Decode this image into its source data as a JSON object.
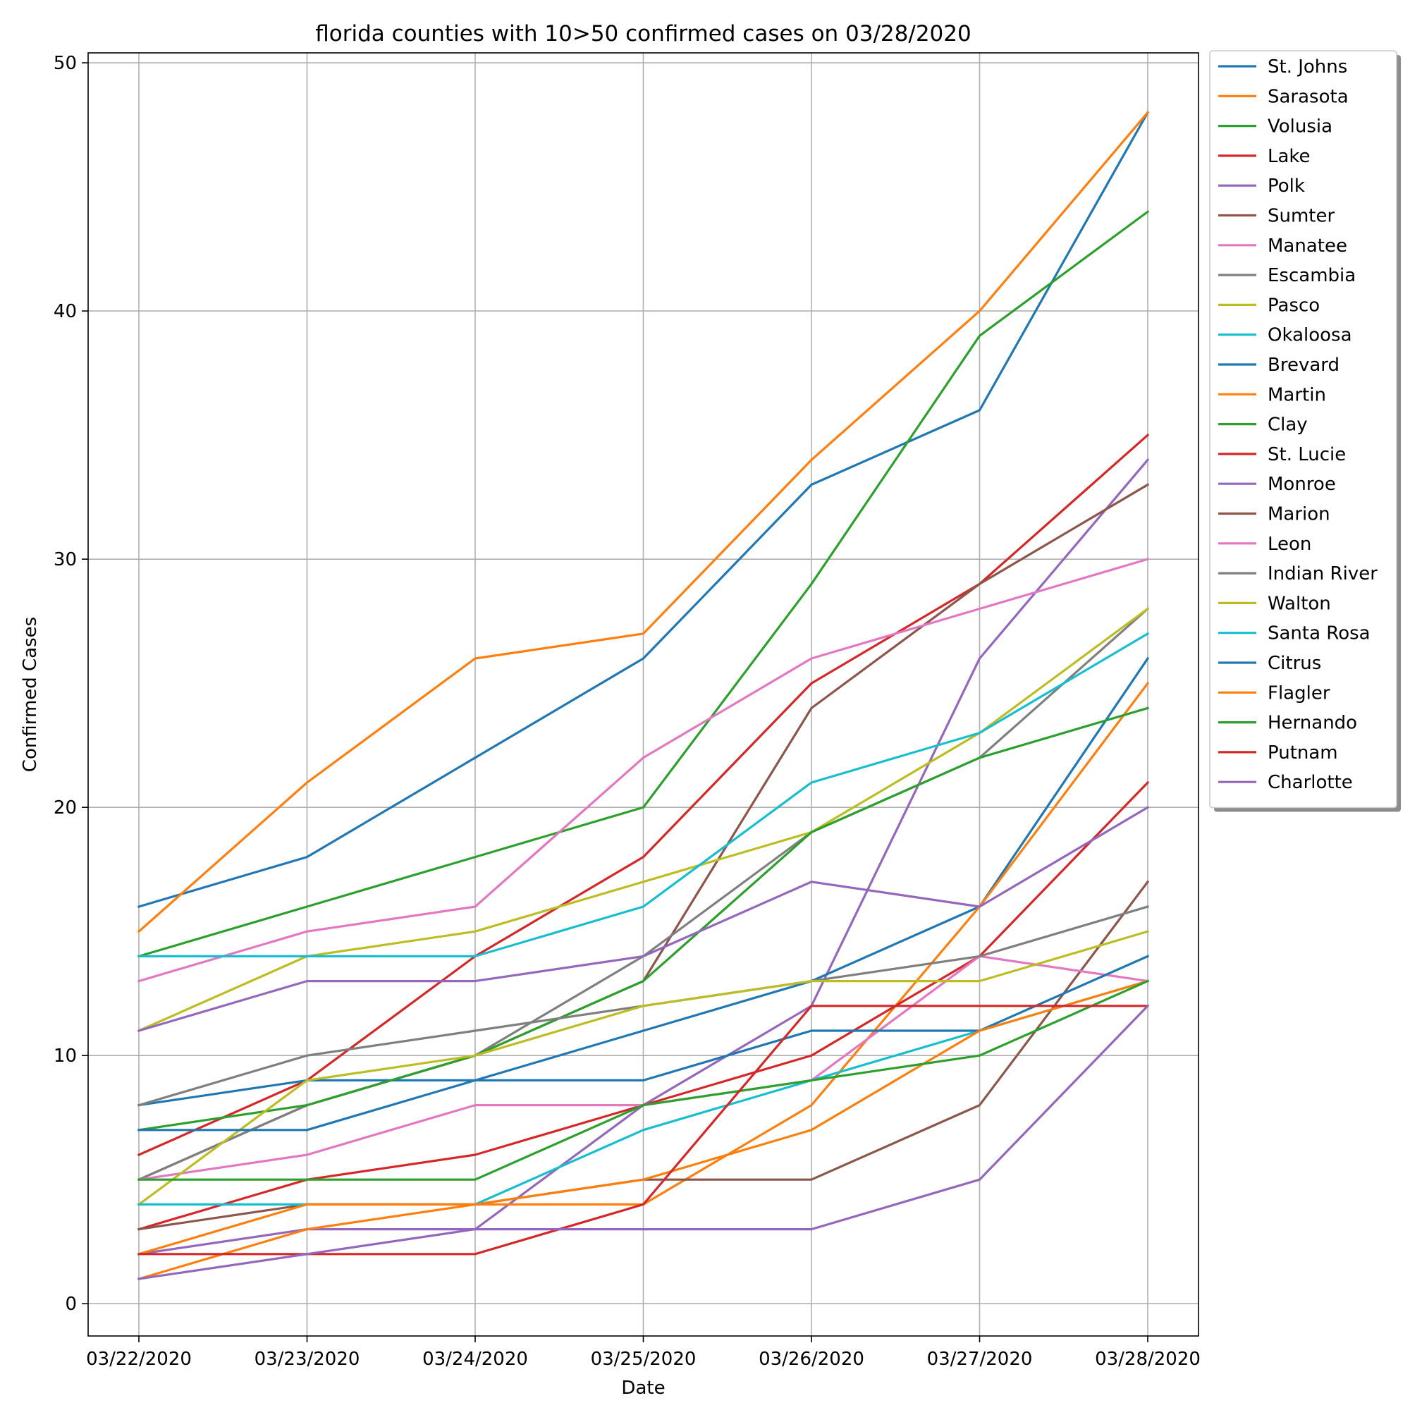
{
  "chart_data": {
    "type": "line",
    "title": "florida counties with 10>50 confirmed cases on 03/28/2020",
    "xlabel": "Date",
    "ylabel": "Confirmed Cases",
    "x": [
      "03/22/2020",
      "03/23/2020",
      "03/24/2020",
      "03/25/2020",
      "03/26/2020",
      "03/27/2020",
      "03/28/2020"
    ],
    "ylim": [
      -1.3,
      50.4
    ],
    "yticks": [
      0,
      10,
      20,
      30,
      40,
      50
    ],
    "grid": true,
    "legend_position": "outside-right",
    "series": [
      {
        "name": "St. Johns",
        "color": "#1f77b4",
        "values": [
          16,
          18,
          22,
          26,
          33,
          36,
          48
        ]
      },
      {
        "name": "Sarasota",
        "color": "#ff7f0e",
        "values": [
          15,
          21,
          26,
          27,
          34,
          40,
          48
        ]
      },
      {
        "name": "Volusia",
        "color": "#2ca02c",
        "values": [
          14,
          16,
          18,
          20,
          29,
          39,
          44
        ]
      },
      {
        "name": "Lake",
        "color": "#d62728",
        "values": [
          6,
          9,
          14,
          18,
          25,
          29,
          35
        ]
      },
      {
        "name": "Polk",
        "color": "#9467bd",
        "values": [
          2,
          3,
          3,
          8,
          12,
          26,
          34
        ]
      },
      {
        "name": "Sumter",
        "color": "#8c564b",
        "values": [
          5,
          8,
          10,
          13,
          24,
          29,
          33
        ]
      },
      {
        "name": "Manatee",
        "color": "#e377c2",
        "values": [
          13,
          15,
          16,
          22,
          26,
          28,
          30
        ]
      },
      {
        "name": "Escambia",
        "color": "#7f7f7f",
        "values": [
          5,
          8,
          10,
          14,
          19,
          22,
          28
        ]
      },
      {
        "name": "Pasco",
        "color": "#bcbd22",
        "values": [
          11,
          14,
          15,
          17,
          19,
          23,
          28
        ]
      },
      {
        "name": "Okaloosa",
        "color": "#17becf",
        "values": [
          14,
          14,
          14,
          16,
          21,
          23,
          27
        ]
      },
      {
        "name": "Brevard",
        "color": "#1f77b4",
        "values": [
          8,
          9,
          9,
          11,
          13,
          16,
          26
        ]
      },
      {
        "name": "Martin",
        "color": "#ff7f0e",
        "values": [
          1,
          3,
          4,
          4,
          8,
          16,
          25
        ]
      },
      {
        "name": "Clay",
        "color": "#2ca02c",
        "values": [
          7,
          8,
          10,
          13,
          19,
          22,
          24
        ]
      },
      {
        "name": "St. Lucie",
        "color": "#d62728",
        "values": [
          3,
          5,
          6,
          8,
          10,
          14,
          21
        ]
      },
      {
        "name": "Monroe",
        "color": "#9467bd",
        "values": [
          11,
          13,
          13,
          14,
          17,
          16,
          20
        ]
      },
      {
        "name": "Marion",
        "color": "#8c564b",
        "values": [
          3,
          4,
          4,
          5,
          5,
          8,
          17
        ]
      },
      {
        "name": "Leon",
        "color": "#e377c2",
        "values": [
          5,
          6,
          8,
          8,
          9,
          14,
          13
        ]
      },
      {
        "name": "Indian River",
        "color": "#7f7f7f",
        "values": [
          8,
          10,
          11,
          12,
          13,
          14,
          16
        ]
      },
      {
        "name": "Walton",
        "color": "#bcbd22",
        "values": [
          4,
          9,
          10,
          12,
          13,
          13,
          15
        ]
      },
      {
        "name": "Santa Rosa",
        "color": "#17becf",
        "values": [
          4,
          4,
          4,
          7,
          9,
          11,
          13
        ]
      },
      {
        "name": "Citrus",
        "color": "#1f77b4",
        "values": [
          7,
          7,
          9,
          9,
          11,
          11,
          14
        ]
      },
      {
        "name": "Flagler",
        "color": "#ff7f0e",
        "values": [
          2,
          4,
          4,
          5,
          7,
          11,
          13
        ]
      },
      {
        "name": "Hernando",
        "color": "#2ca02c",
        "values": [
          5,
          5,
          5,
          8,
          9,
          10,
          13
        ]
      },
      {
        "name": "Putnam",
        "color": "#d62728",
        "values": [
          2,
          2,
          2,
          4,
          12,
          12,
          12
        ]
      },
      {
        "name": "Charlotte",
        "color": "#9467bd",
        "values": [
          1,
          2,
          3,
          3,
          3,
          5,
          12
        ]
      }
    ]
  }
}
